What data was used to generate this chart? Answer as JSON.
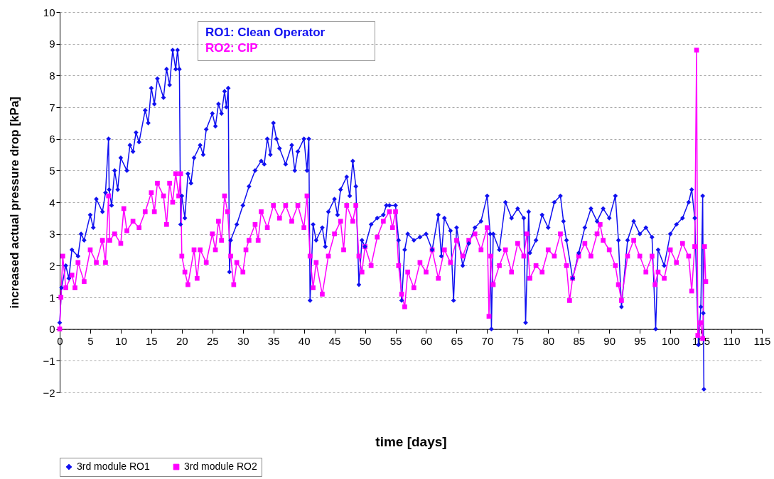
{
  "chart_data": {
    "type": "line",
    "xlabel": "time  [days]",
    "ylabel": "increased actual pressure drop  [kPa]",
    "annotations": [
      "RO1: Clean Operator",
      "RO2: CIP"
    ],
    "xlim": [
      0,
      115
    ],
    "xticks": [
      0,
      5,
      10,
      15,
      20,
      25,
      30,
      35,
      40,
      45,
      50,
      55,
      60,
      65,
      70,
      75,
      80,
      85,
      90,
      95,
      100,
      105,
      110,
      115
    ],
    "ylim": [
      -2,
      10
    ],
    "yticks": [
      -2,
      -1,
      0,
      1,
      2,
      3,
      4,
      5,
      6,
      7,
      8,
      9,
      10
    ],
    "grid": "y",
    "legend": "bottom",
    "line_style": "solid",
    "series": [
      {
        "name": "3rd module RO1",
        "color": "#1010f0",
        "marker": "diamond",
        "x": [
          0,
          0.3,
          1,
          1.5,
          2,
          3,
          3.5,
          4,
          5,
          5.5,
          6,
          7,
          7.5,
          8,
          8.1,
          8.5,
          9,
          9.5,
          10,
          11,
          11.5,
          12,
          12.5,
          13,
          14,
          14.5,
          15,
          15.5,
          16,
          17,
          17.5,
          18,
          18.5,
          19,
          19.3,
          19.6,
          19.8,
          20,
          20.5,
          21,
          21.5,
          22,
          23,
          23.5,
          24,
          25,
          25.5,
          26,
          26.5,
          27,
          27.3,
          27.6,
          27.8,
          28,
          29,
          30,
          31,
          32,
          33,
          33.5,
          34,
          34.5,
          35,
          35.5,
          36,
          37,
          38,
          38.5,
          39,
          40,
          40.5,
          40.8,
          41,
          41.5,
          42,
          43,
          43.5,
          44,
          45,
          45.5,
          46,
          47,
          47.5,
          48,
          48.5,
          49,
          49.5,
          50,
          51,
          52,
          53,
          53.5,
          54,
          55,
          55.5,
          56,
          56.5,
          57,
          58,
          59,
          60,
          61,
          62,
          62.5,
          63,
          64,
          64.5,
          65,
          66,
          67,
          68,
          69,
          70,
          70.5,
          70.7,
          71,
          72,
          73,
          74,
          75,
          76,
          76.3,
          76.8,
          77,
          78,
          79,
          80,
          81,
          82,
          82.5,
          83,
          84,
          85,
          86,
          87,
          88,
          89,
          90,
          91,
          91.5,
          92,
          93,
          94,
          95,
          96,
          97,
          97.6,
          98,
          99,
          100,
          101,
          102,
          103,
          103.5,
          104,
          104.6,
          105,
          105.3,
          105.4,
          105.5
        ],
        "values": [
          0.2,
          1.3,
          2.0,
          1.6,
          2.5,
          2.3,
          3.0,
          2.8,
          3.6,
          3.2,
          4.1,
          3.7,
          4.3,
          6.0,
          4.4,
          3.9,
          5.0,
          4.4,
          5.4,
          5.0,
          5.8,
          5.6,
          6.2,
          5.9,
          6.9,
          6.5,
          7.6,
          7.1,
          7.9,
          7.3,
          8.2,
          7.7,
          8.8,
          8.2,
          8.8,
          8.2,
          3.3,
          4.2,
          3.5,
          4.9,
          4.6,
          5.4,
          5.8,
          5.5,
          6.3,
          6.8,
          6.4,
          7.1,
          6.8,
          7.5,
          7.0,
          7.6,
          1.8,
          2.8,
          3.3,
          3.9,
          4.5,
          5.0,
          5.3,
          5.2,
          6.0,
          5.5,
          6.5,
          6.0,
          5.7,
          5.2,
          5.8,
          5.0,
          5.6,
          6.0,
          5.0,
          6.0,
          0.9,
          3.3,
          2.8,
          3.2,
          2.6,
          3.7,
          4.1,
          3.6,
          4.4,
          4.8,
          4.2,
          5.3,
          4.5,
          1.4,
          2.8,
          2.6,
          3.3,
          3.5,
          3.6,
          3.9,
          3.9,
          3.9,
          2.8,
          0.9,
          2.5,
          3.0,
          2.8,
          2.9,
          3.0,
          2.5,
          3.6,
          2.3,
          3.5,
          3.1,
          0.9,
          3.2,
          2.0,
          2.7,
          3.2,
          3.4,
          4.2,
          3.0,
          0,
          3.0,
          2.5,
          4.0,
          3.5,
          3.8,
          3.5,
          0.2,
          3.7,
          2.4,
          2.8,
          3.6,
          3.2,
          4.0,
          4.2,
          3.4,
          2.8,
          1.6,
          2.4,
          3.2,
          3.8,
          3.4,
          3.8,
          3.5,
          4.2,
          2.8,
          0.7,
          2.8,
          3.4,
          3.0,
          3.2,
          2.9,
          0,
          2.5,
          2.0,
          3.0,
          3.3,
          3.5,
          4.0,
          4.4,
          3.5,
          -0.5,
          0.7,
          4.2,
          0.5,
          -1.9
        ]
      },
      {
        "name": "3rd module RO2",
        "color": "#ff00ff",
        "marker": "square",
        "x": [
          0,
          0.2,
          0.5,
          1,
          2,
          2.5,
          3,
          4,
          5,
          6,
          7,
          7.5,
          8,
          8.2,
          9,
          10,
          10.5,
          11,
          12,
          13,
          14,
          15,
          15.5,
          16,
          17,
          17.5,
          18,
          18.5,
          19,
          19.5,
          19.8,
          20,
          20.5,
          21,
          22,
          22.5,
          23,
          24,
          25,
          25.5,
          26,
          26.5,
          27,
          27.5,
          28,
          28.5,
          29,
          30,
          30.5,
          31,
          32,
          32.5,
          33,
          34,
          35,
          36,
          37,
          38,
          39,
          40,
          40.5,
          41,
          41.5,
          42,
          43,
          44,
          45,
          46,
          46.5,
          47,
          48,
          48.5,
          49,
          49.5,
          50,
          51,
          52,
          53,
          54,
          54.5,
          55,
          55.5,
          56,
          56.5,
          57,
          58,
          59,
          60,
          61,
          62,
          63,
          64,
          65,
          66,
          67,
          68,
          69,
          70,
          70.3,
          70.6,
          71,
          72,
          73,
          74,
          75,
          76,
          76.5,
          77,
          78,
          79,
          80,
          81,
          82,
          83,
          83.5,
          84,
          85,
          86,
          87,
          88,
          88.5,
          89,
          90,
          91,
          91.5,
          92,
          93,
          94,
          95,
          96,
          97,
          97.5,
          98,
          99,
          100,
          101,
          102,
          103,
          103.5,
          104,
          104.3,
          104.5,
          105,
          105.3,
          105.6,
          105.8
        ],
        "values": [
          0,
          1.0,
          2.3,
          1.3,
          1.7,
          1.3,
          2.1,
          1.5,
          2.5,
          2.1,
          2.8,
          2.1,
          4.2,
          2.8,
          3.0,
          2.7,
          3.8,
          3.1,
          3.4,
          3.2,
          3.7,
          4.3,
          3.7,
          4.6,
          4.2,
          3.3,
          4.6,
          4.0,
          4.9,
          4.2,
          4.9,
          2.3,
          1.8,
          1.4,
          2.5,
          1.6,
          2.5,
          2.1,
          3.0,
          2.5,
          3.4,
          2.8,
          4.2,
          3.7,
          2.3,
          1.4,
          2.1,
          1.8,
          2.5,
          2.8,
          3.3,
          2.8,
          3.7,
          3.2,
          3.9,
          3.5,
          3.9,
          3.4,
          3.9,
          3.2,
          4.2,
          2.3,
          1.3,
          2.1,
          1.1,
          2.3,
          3.0,
          3.4,
          2.5,
          3.9,
          3.4,
          3.9,
          2.3,
          1.8,
          2.6,
          2.0,
          2.9,
          3.4,
          3.7,
          3.2,
          3.7,
          2.0,
          1.1,
          0.7,
          1.8,
          1.3,
          2.1,
          1.8,
          2.5,
          1.6,
          2.5,
          2.1,
          2.8,
          2.3,
          2.8,
          3.0,
          2.5,
          3.2,
          0.4,
          2.3,
          1.4,
          2.0,
          2.5,
          1.8,
          2.7,
          2.3,
          3.0,
          1.6,
          2.0,
          1.8,
          2.5,
          2.3,
          3.0,
          2.0,
          0.9,
          1.6,
          2.3,
          2.7,
          2.3,
          3.0,
          3.3,
          2.8,
          2.5,
          2.0,
          1.4,
          0.9,
          2.3,
          2.8,
          2.3,
          1.8,
          2.3,
          1.4,
          1.8,
          1.6,
          2.5,
          2.1,
          2.7,
          2.3,
          1.2,
          2.6,
          8.8,
          -0.2,
          0.2,
          -0.3,
          2.6,
          1.5
        ]
      }
    ]
  }
}
